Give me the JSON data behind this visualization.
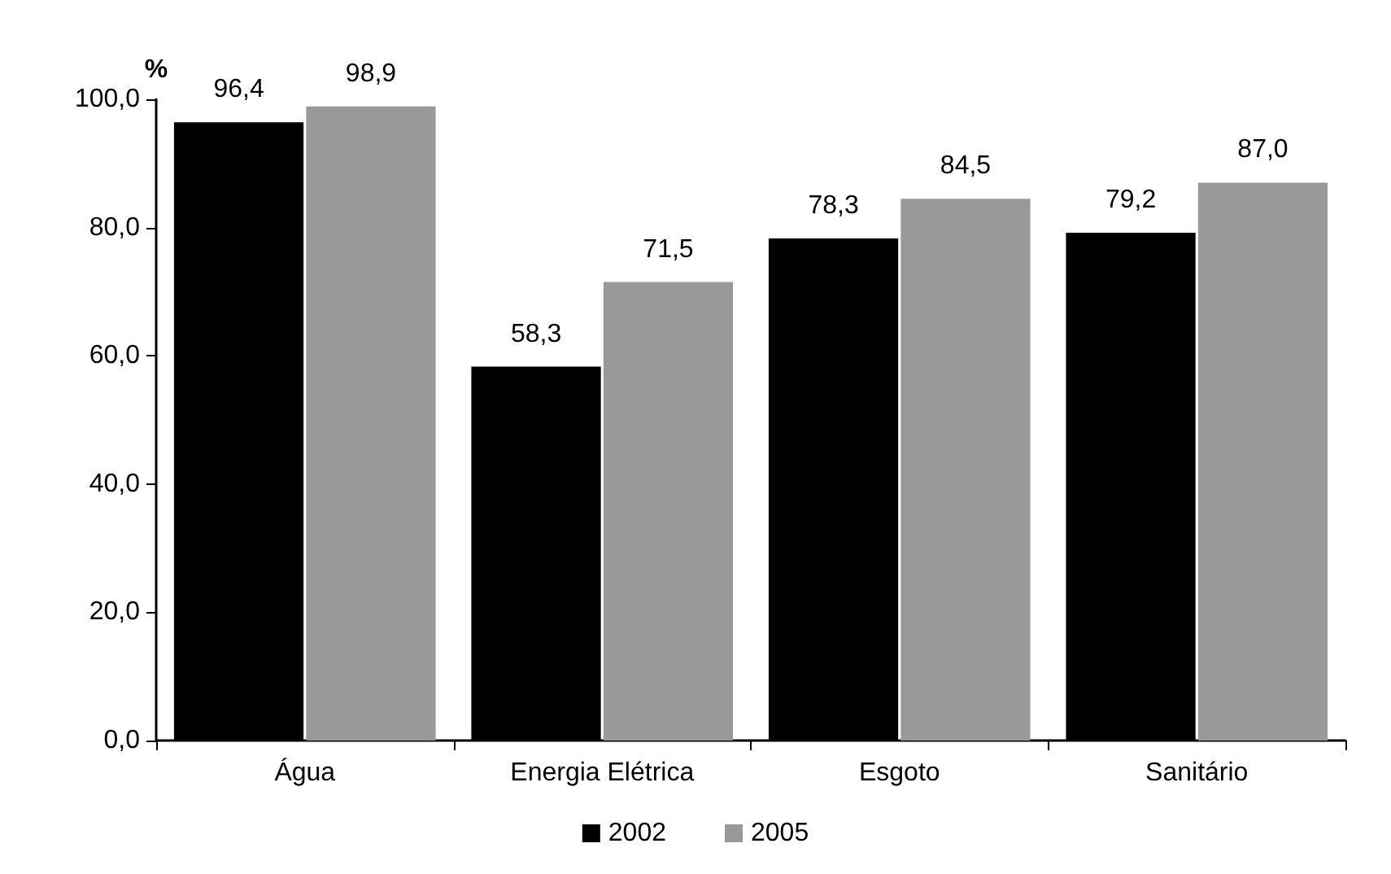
{
  "chart_data": {
    "type": "bar",
    "ylabel": "%",
    "categories": [
      "Água",
      "Energia Elétrica",
      "Esgoto",
      "Sanitário"
    ],
    "series": [
      {
        "name": "2002",
        "color": "#000000",
        "values": [
          96.4,
          58.3,
          78.3,
          79.2
        ],
        "value_labels": [
          "96,4",
          "58,3",
          "78,3",
          "79,2"
        ]
      },
      {
        "name": "2005",
        "color": "#999999",
        "values": [
          98.9,
          71.5,
          84.5,
          87.0
        ],
        "value_labels": [
          "98,9",
          "71,5",
          "84,5",
          "87,0"
        ]
      }
    ],
    "ylim": [
      0,
      100
    ],
    "yticks": [
      {
        "value": 0,
        "label": "0,0"
      },
      {
        "value": 20,
        "label": "20,0"
      },
      {
        "value": 40,
        "label": "40,0"
      },
      {
        "value": 60,
        "label": "60,0"
      },
      {
        "value": 80,
        "label": "80,0"
      },
      {
        "value": 100,
        "label": "100,0"
      }
    ],
    "grid": false,
    "legend": "bottom"
  }
}
